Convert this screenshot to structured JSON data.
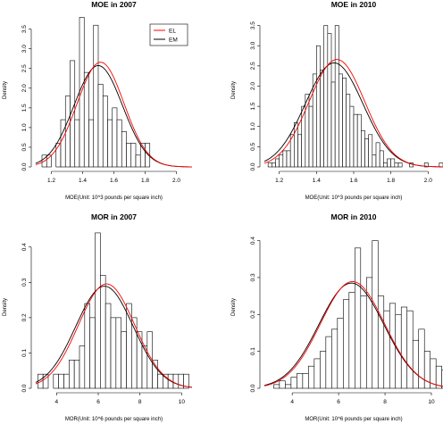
{
  "colors": {
    "el": "#ff0000",
    "em": "#000000",
    "bar_stroke": "#000000",
    "bar_fill": "#ffffff"
  },
  "legend": {
    "entries": [
      "EL",
      "EM"
    ],
    "placement": "top-right of first panel"
  },
  "chart_data": [
    {
      "type": "histogram",
      "title": "MOE in 2007",
      "xlabel": "MOE(Unit: 10^3 pounds per square inch)",
      "ylabel": "Density",
      "xlim": [
        1.1,
        2.1
      ],
      "ylim": [
        0,
        3.9
      ],
      "xticks": [
        "1.2",
        "1.4",
        "1.6",
        "1.8",
        "2.0"
      ],
      "yticks": [
        "0.0",
        "0.5",
        "1.0",
        "1.5",
        "2.0",
        "2.5",
        "3.0",
        "3.5"
      ],
      "bin_start": 1.14,
      "bin_width": 0.03,
      "values": [
        0.3,
        0.3,
        0.0,
        0.6,
        1.2,
        1.8,
        2.7,
        1.2,
        3.8,
        2.4,
        1.2,
        3.6,
        2.1,
        1.8,
        1.2,
        1.5,
        1.2,
        0.9,
        0.6,
        0.6,
        0.3,
        0.6,
        0.6
      ],
      "show_legend": true,
      "curves": [
        {
          "name": "EL",
          "mean": 1.515,
          "sd": 0.15
        },
        {
          "name": "EM",
          "mean": 1.5,
          "sd": 0.155
        }
      ]
    },
    {
      "type": "histogram",
      "title": "MOE in 2010",
      "xlabel": "MOE(Unit: 10^3 pounds per square inch)",
      "ylabel": "Density",
      "xlim": [
        1.12,
        2.08
      ],
      "ylim": [
        0,
        3.8
      ],
      "xticks": [
        "1.2",
        "1.4",
        "1.6",
        "1.8",
        "2.0"
      ],
      "yticks": [
        "0.0",
        "0.5",
        "1.0",
        "1.5",
        "2.0",
        "2.5",
        "3.0",
        "3.5"
      ],
      "bin_start": 1.14,
      "bin_width": 0.02,
      "values": [
        0.1,
        0.1,
        0.2,
        0.3,
        0.4,
        0.4,
        0.8,
        1.1,
        0.8,
        1.5,
        1.8,
        1.5,
        2.3,
        3.0,
        2.4,
        3.5,
        3.3,
        2.1,
        3.5,
        2.3,
        2.2,
        1.8,
        1.5,
        1.3,
        1.3,
        0.9,
        0.7,
        0.8,
        0.3,
        0.6,
        0.4,
        0.1,
        0.2,
        0.2,
        0.1,
        0.1,
        0.0,
        0.0,
        0.1,
        0.0,
        0.0,
        0.0,
        0.1,
        0.0,
        0.0,
        0.0,
        0.1
      ],
      "show_legend": false,
      "curves": [
        {
          "name": "EL",
          "mean": 1.51,
          "sd": 0.15
        },
        {
          "name": "EM",
          "mean": 1.495,
          "sd": 0.155
        }
      ]
    },
    {
      "type": "histogram",
      "title": "MOR in 2007",
      "xlabel": "MOR(Unit: 10^6 pounds per square inch)",
      "ylabel": "Density",
      "xlim": [
        3.0,
        10.5
      ],
      "ylim": [
        0,
        0.46
      ],
      "xticks": [
        "4",
        "6",
        "8",
        "10"
      ],
      "yticks": [
        "0.0",
        "0.1",
        "0.2",
        "0.3",
        "0.4"
      ],
      "bin_start": 3.1,
      "bin_width": 0.25,
      "values": [
        0.04,
        0.04,
        0.0,
        0.04,
        0.04,
        0.04,
        0.08,
        0.08,
        0.12,
        0.24,
        0.2,
        0.44,
        0.32,
        0.24,
        0.2,
        0.2,
        0.16,
        0.24,
        0.2,
        0.16,
        0.12,
        0.16,
        0.08,
        0.04,
        0.04,
        0.04,
        0.04,
        0.04,
        0.04
      ],
      "show_legend": false,
      "curves": [
        {
          "name": "EL",
          "mean": 6.4,
          "sd": 1.35
        },
        {
          "name": "EM",
          "mean": 6.3,
          "sd": 1.38
        }
      ]
    },
    {
      "type": "histogram",
      "title": "MOR in 2010",
      "xlabel": "MOR(Unit: 10^6 pounds per square inch)",
      "ylabel": "Density",
      "xlim": [
        2.8,
        10.5
      ],
      "ylim": [
        0,
        0.44
      ],
      "xticks": [
        "4",
        "6",
        "8",
        "10"
      ],
      "yticks": [
        "0.0",
        "0.1",
        "0.2",
        "0.3",
        "0.4"
      ],
      "bin_start": 3.2,
      "bin_width": 0.25,
      "values": [
        0.01,
        0.02,
        0.01,
        0.03,
        0.04,
        0.04,
        0.06,
        0.08,
        0.1,
        0.14,
        0.16,
        0.19,
        0.24,
        0.26,
        0.38,
        0.25,
        0.3,
        0.4,
        0.25,
        0.21,
        0.23,
        0.2,
        0.22,
        0.21,
        0.13,
        0.16,
        0.1,
        0.08,
        0.06,
        0.05,
        0.04,
        0.02
      ],
      "show_legend": false,
      "curves": [
        {
          "name": "EL",
          "mean": 6.6,
          "sd": 1.38
        },
        {
          "name": "EM",
          "mean": 6.55,
          "sd": 1.4
        }
      ]
    }
  ]
}
